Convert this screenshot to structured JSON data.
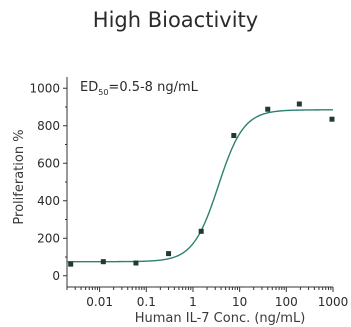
{
  "chart_data": {
    "type": "scatter",
    "title": "High Bioactivity",
    "xlabel": "Human IL-7 Conc. (ng/mL)",
    "ylabel": "Proliferation %",
    "x_scale": "log",
    "xlim": [
      0.002,
      1000
    ],
    "ylim": [
      -60,
      1060
    ],
    "x_ticks": [
      0.01,
      0.1,
      1,
      10,
      100,
      1000
    ],
    "x_tick_labels": [
      "0.01",
      "0.1",
      "1",
      "10",
      "100",
      "1000"
    ],
    "y_ticks": [
      0,
      200,
      400,
      600,
      800,
      1000
    ],
    "y_tick_labels": [
      "0",
      "200",
      "400",
      "600",
      "800",
      "1000"
    ],
    "annotation": {
      "main": "ED",
      "subscript": "50",
      "rest": "=0.5-8 ng/mL"
    },
    "grid": false,
    "series": [
      {
        "marker_color": "#1f3b2f",
        "x": [
          0.0024,
          0.012,
          0.06,
          0.3,
          1.5,
          7.5,
          40,
          190,
          950
        ],
        "y": [
          62,
          75,
          68,
          118,
          237,
          748,
          888,
          916,
          835
        ]
      }
    ],
    "fit_curve": {
      "color": "#2e8070",
      "bottom": 75,
      "top": 885,
      "ec50": 3.5,
      "hill": 1.6
    }
  }
}
